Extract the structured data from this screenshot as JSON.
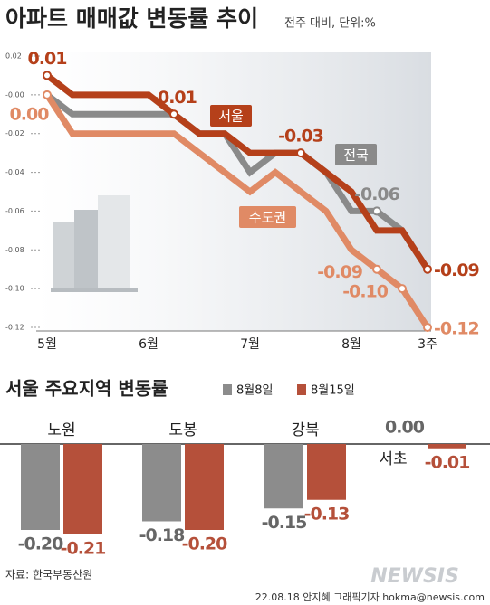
{
  "chart_data": [
    {
      "type": "line",
      "title": "아파트 매매값 변동률 추이",
      "subtitle": "전주 대비, 단위:%",
      "categories": [
        "5월",
        null,
        null,
        null,
        "6월",
        null,
        null,
        null,
        "7월",
        null,
        null,
        null,
        "8월",
        null,
        null,
        "3주"
      ],
      "series": [
        {
          "name": "서울",
          "color": "#b5401a",
          "values": [
            0.01,
            0.0,
            0.0,
            0.0,
            0.0,
            -0.01,
            -0.02,
            -0.02,
            -0.03,
            -0.03,
            -0.03,
            -0.04,
            -0.05,
            -0.07,
            -0.07,
            -0.09
          ],
          "value_labels": [
            "0.01",
            null,
            null,
            null,
            null,
            "-0.01",
            null,
            null,
            null,
            null,
            "-0.03",
            null,
            null,
            null,
            null,
            "-0.09"
          ]
        },
        {
          "name": "전국",
          "color": "#8a8a8a",
          "values": [
            0.0,
            -0.01,
            -0.01,
            -0.01,
            -0.01,
            -0.01,
            -0.02,
            -0.02,
            -0.04,
            -0.03,
            -0.03,
            -0.04,
            -0.06,
            -0.06,
            -0.07,
            -0.09
          ],
          "value_labels": [
            null,
            null,
            null,
            null,
            null,
            null,
            null,
            null,
            null,
            null,
            null,
            null,
            null,
            "-0.06",
            null,
            null
          ]
        },
        {
          "name": "수도권",
          "color": "#e08a65",
          "values": [
            0.0,
            -0.02,
            -0.02,
            -0.02,
            -0.02,
            -0.02,
            -0.03,
            -0.04,
            -0.05,
            -0.04,
            -0.05,
            -0.06,
            -0.08,
            -0.09,
            -0.1,
            -0.12
          ],
          "value_labels": [
            "0.00",
            null,
            null,
            null,
            null,
            null,
            null,
            null,
            null,
            null,
            null,
            null,
            null,
            "-0.09",
            "-0.10",
            "-0.12"
          ]
        }
      ],
      "ylim": [
        -0.12,
        0.02
      ],
      "yticks": [
        -0.12,
        {
          "value": -0.1,
          "label": "-0.10"
        },
        -0.08,
        -0.06,
        -0.04,
        -0.02,
        {
          "value": 0,
          "label": "-0.00"
        },
        0.02
      ]
    },
    {
      "type": "bar",
      "title": "서울 주요지역 변동률",
      "categories": [
        "노원",
        "도봉",
        "강북",
        "서초"
      ],
      "series": [
        {
          "name": "8월8일",
          "color": "#8c8c8c",
          "values": [
            -0.2,
            -0.18,
            -0.15,
            0.0
          ],
          "value_labels": [
            "-0.20",
            "-0.18",
            "-0.15",
            "0.00"
          ]
        },
        {
          "name": "8월15일",
          "color": "#b5503a",
          "values": [
            -0.21,
            -0.2,
            -0.13,
            -0.01
          ],
          "value_labels": [
            "-0.21",
            "-0.20",
            "-0.13",
            "-0.01"
          ]
        }
      ],
      "ylim": [
        -0.22,
        0
      ]
    }
  ],
  "source": "자료: 한국부동산원",
  "credit": "22.08.18 안지혜 그래픽기자 hokma@newsis.com",
  "watermark": "NEWSIS"
}
